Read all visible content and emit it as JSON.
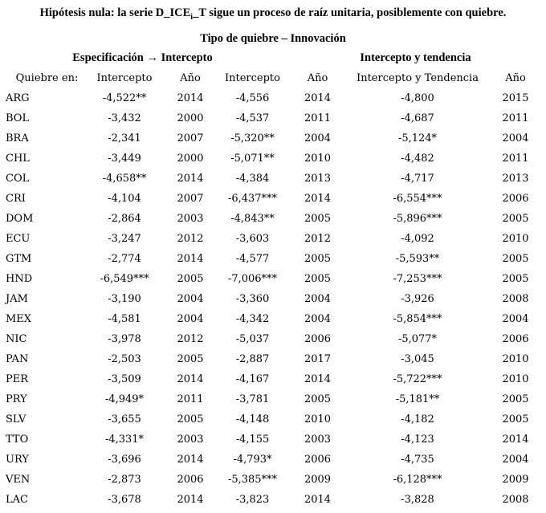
{
  "title": {
    "prefix": "Hipótesis nula: la serie D_ICE",
    "subscript": "i",
    "suffix": "_T sigue un proceso de raíz unitaria, posiblemente con quiebre."
  },
  "subtitle": "Tipo de quiebre – Innovación",
  "table": {
    "group_headers": {
      "left": "Especificación → Intercepto",
      "right": "Intercepto y tendencia"
    },
    "column_headers": [
      "Quiebre en:",
      "Intercepto",
      "Año",
      "Intercepto",
      "Año",
      "Intercepto y Tendencia",
      "Año"
    ],
    "rows": [
      {
        "country": "ARG",
        "int1": "-4,522**",
        "year1": "2014",
        "int2": "-4,556",
        "year2": "2014",
        "int3": "-4,800",
        "year3": "2015"
      },
      {
        "country": "BOL",
        "int1": "-3,432",
        "year1": "2000",
        "int2": "-4,537",
        "year2": "2011",
        "int3": "-4,687",
        "year3": "2011"
      },
      {
        "country": "BRA",
        "int1": "-2,341",
        "year1": "2007",
        "int2": "-5,320**",
        "year2": "2004",
        "int3": "-5,124*",
        "year3": "2004"
      },
      {
        "country": "CHL",
        "int1": "-3,449",
        "year1": "2000",
        "int2": "-5,071**",
        "year2": "2010",
        "int3": "-4,482",
        "year3": "2011"
      },
      {
        "country": "COL",
        "int1": "-4,658**",
        "year1": "2014",
        "int2": "-4,384",
        "year2": "2013",
        "int3": "-4,717",
        "year3": "2013"
      },
      {
        "country": "CRI",
        "int1": "-4,104",
        "year1": "2007",
        "int2": "-6,437***",
        "year2": "2014",
        "int3": "-6,554***",
        "year3": "2006"
      },
      {
        "country": "DOM",
        "int1": "-2,864",
        "year1": "2003",
        "int2": "-4,843**",
        "year2": "2005",
        "int3": "-5,896***",
        "year3": "2005"
      },
      {
        "country": "ECU",
        "int1": "-3,247",
        "year1": "2012",
        "int2": "-3,603",
        "year2": "2012",
        "int3": "-4,092",
        "year3": "2010"
      },
      {
        "country": "GTM",
        "int1": "-2,774",
        "year1": "2014",
        "int2": "-4,577",
        "year2": "2005",
        "int3": "-5,593**",
        "year3": "2005"
      },
      {
        "country": "HND",
        "int1": "-6,549***",
        "year1": "2005",
        "int2": "-7,006***",
        "year2": "2005",
        "int3": "-7,253***",
        "year3": "2005"
      },
      {
        "country": "JAM",
        "int1": "-3,190",
        "year1": "2004",
        "int2": "-3,360",
        "year2": "2004",
        "int3": "-3,926",
        "year3": "2008"
      },
      {
        "country": "MEX",
        "int1": "-4,581",
        "year1": "2004",
        "int2": "-4,342",
        "year2": "2004",
        "int3": "-5,854***",
        "year3": "2004"
      },
      {
        "country": "NIC",
        "int1": "-3,978",
        "year1": "2012",
        "int2": "-5,037",
        "year2": "2006",
        "int3": "-5,077*",
        "year3": "2006"
      },
      {
        "country": "PAN",
        "int1": "-2,503",
        "year1": "2005",
        "int2": "-2,887",
        "year2": "2017",
        "int3": "-3,045",
        "year3": "2010"
      },
      {
        "country": "PER",
        "int1": "-3,509",
        "year1": "2014",
        "int2": "-4,167",
        "year2": "2014",
        "int3": "-5,722***",
        "year3": "2010"
      },
      {
        "country": "PRY",
        "int1": "-4,949*",
        "year1": "2011",
        "int2": "-3,781",
        "year2": "2005",
        "int3": "-5,181**",
        "year3": "2005"
      },
      {
        "country": "SLV",
        "int1": "-3,655",
        "year1": "2005",
        "int2": "-4,148",
        "year2": "2010",
        "int3": "-4,182",
        "year3": "2005"
      },
      {
        "country": "TTO",
        "int1": "-4,331*",
        "year1": "2003",
        "int2": "-4,155",
        "year2": "2003",
        "int3": "-4,123",
        "year3": "2014"
      },
      {
        "country": "URY",
        "int1": "-3,696",
        "year1": "2014",
        "int2": "-4,793*",
        "year2": "2006",
        "int3": "-4,735",
        "year3": "2004"
      },
      {
        "country": "VEN",
        "int1": "-2,873",
        "year1": "2006",
        "int2": "-5,385***",
        "year2": "2009",
        "int3": "-6,128***",
        "year3": "2009"
      },
      {
        "country": "LAC",
        "int1": "-3,678",
        "year1": "2014",
        "int2": "-3,823",
        "year2": "2014",
        "int3": "-3,828",
        "year3": "2008"
      }
    ]
  }
}
